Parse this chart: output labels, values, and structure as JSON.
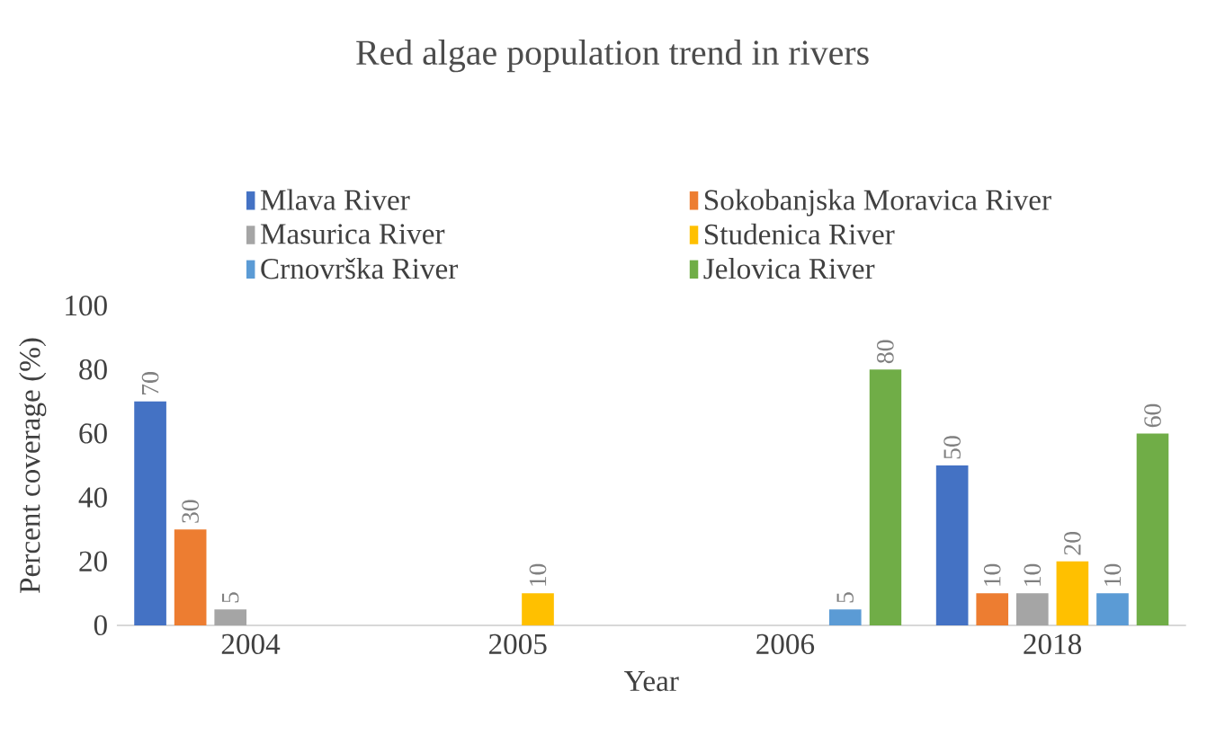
{
  "chart_data": {
    "type": "bar",
    "title": "Red algae population trend in rivers",
    "xlabel": "Year",
    "ylabel": "Percent coverage (%)",
    "categories": [
      "2004",
      "2005",
      "2006",
      "2018"
    ],
    "series": [
      {
        "name": "Mlava River",
        "color": "#4472c4",
        "values": [
          70,
          null,
          null,
          50
        ]
      },
      {
        "name": "Sokobanjska Moravica River",
        "color": "#ed7d31",
        "values": [
          30,
          null,
          null,
          10
        ]
      },
      {
        "name": "Masurica River",
        "color": "#a5a5a5",
        "values": [
          5,
          null,
          null,
          10
        ]
      },
      {
        "name": "Studenica River",
        "color": "#ffc000",
        "values": [
          null,
          10,
          null,
          20
        ]
      },
      {
        "name": "Crnovrška River",
        "color": "#5b9bd5",
        "values": [
          null,
          null,
          5,
          10
        ]
      },
      {
        "name": "Jelovica River",
        "color": "#70ad47",
        "values": [
          null,
          null,
          80,
          60
        ]
      }
    ],
    "ylim": [
      0,
      100
    ],
    "yticks": [
      0,
      20,
      40,
      60,
      80,
      100
    ],
    "legend": "top",
    "data_labels": true
  }
}
